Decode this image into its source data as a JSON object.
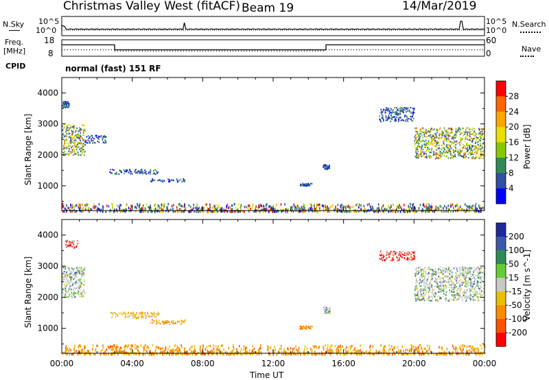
{
  "header": {
    "station": "Christmas Valley West (fitACF)",
    "beam": "Beam 19",
    "date": "14/Mar/2019"
  },
  "left_labels": {
    "nsky": "N.Sky",
    "freq_line1": "Freq.",
    "freq_line2": "[MHz]",
    "cpid": "CPID"
  },
  "right_labels": {
    "nsearch": "N.Search",
    "nave": "Nave"
  },
  "cpid_text": "normal (fast) 151 RF",
  "noise_panel": {
    "left_ticks": [
      "10^5",
      "10^0"
    ],
    "right_ticks": [
      "10^5",
      "10^0"
    ]
  },
  "freq_panel": {
    "left_ticks": [
      "18",
      "8"
    ],
    "right_ticks": [
      "60",
      "0"
    ],
    "freq_segments": [
      [
        0,
        3.0,
        15
      ],
      [
        3.0,
        15.0,
        11
      ],
      [
        15.0,
        24,
        15
      ]
    ],
    "nave_segments": [
      [
        0,
        3.0,
        18
      ],
      [
        3.0,
        15.0,
        12
      ],
      [
        15.0,
        24,
        18
      ]
    ]
  },
  "chart_data": [
    {
      "type": "heatmap",
      "quantity": "Power",
      "ylabel": "Slant Range [km]",
      "yticks": [
        1000,
        2000,
        3000,
        4000
      ],
      "ylim": [
        200,
        4500
      ],
      "xlim_hours": [
        0,
        24
      ],
      "colorbar_label": "Power [dB]",
      "colorbar_ticks": [
        "28",
        "24",
        "20",
        "16",
        "12",
        "8",
        "4"
      ],
      "colorbar_colors": [
        "#ff0000",
        "#ff6600",
        "#ffa500",
        "#e8e000",
        "#88c800",
        "#2e8b57",
        "#3050a0",
        "#0000ff"
      ],
      "echo_regions": [
        {
          "x": [
            0.0,
            1.3
          ],
          "y": [
            2000,
            3000
          ],
          "desc": "mixed 8-24 dB"
        },
        {
          "x": [
            0.0,
            0.4
          ],
          "y": [
            3550,
            3750
          ],
          "desc": "sparse"
        },
        {
          "x": [
            1.3,
            2.5
          ],
          "y": [
            2400,
            2650
          ],
          "desc": "weak"
        },
        {
          "x": [
            2.7,
            5.5
          ],
          "y": [
            1400,
            1550
          ],
          "desc": "weak 4-8 dB"
        },
        {
          "x": [
            5.0,
            7.0
          ],
          "y": [
            1150,
            1250
          ],
          "desc": "weak"
        },
        {
          "x": [
            13.5,
            14.2
          ],
          "y": [
            1020,
            1100
          ],
          "desc": "weak"
        },
        {
          "x": [
            14.8,
            15.2
          ],
          "y": [
            1550,
            1700
          ],
          "desc": "weak"
        },
        {
          "x": [
            18.0,
            20.0
          ],
          "y": [
            3100,
            3550
          ],
          "desc": "weak-moderate"
        },
        {
          "x": [
            20.0,
            24.0
          ],
          "y": [
            1900,
            2900
          ],
          "desc": "mixed 8-24 dB"
        },
        {
          "x": [
            0.0,
            24.0
          ],
          "y": [
            200,
            450
          ],
          "desc": "near-range band"
        }
      ]
    },
    {
      "type": "heatmap",
      "quantity": "Velocity",
      "ylabel": "Slant Range [km]",
      "yticks": [
        1000,
        2000,
        3000,
        4000
      ],
      "ylim": [
        200,
        4500
      ],
      "xlim_hours": [
        0,
        24
      ],
      "colorbar_label": "Velocity [m s^-1]",
      "colorbar_ticks": [
        "200",
        "100",
        "50",
        "15",
        "-15",
        "-50",
        "-100",
        "-200"
      ],
      "colorbar_colors": [
        "#1e2a9b",
        "#3c5aa8",
        "#2e8b57",
        "#66cc33",
        "#c8c8c8",
        "#e8c000",
        "#ff8c00",
        "#ff5000",
        "#ff0000"
      ],
      "echo_regions": [
        {
          "x": [
            0.0,
            1.3
          ],
          "y": [
            2000,
            3000
          ],
          "desc": "near-zero (grey)"
        },
        {
          "x": [
            0.2,
            0.9
          ],
          "y": [
            3600,
            3850
          ],
          "desc": "negative (red)"
        },
        {
          "x": [
            2.7,
            5.5
          ],
          "y": [
            1350,
            1550
          ],
          "desc": "small negative (yellow)"
        },
        {
          "x": [
            5.0,
            7.0
          ],
          "y": [
            1150,
            1300
          ],
          "desc": "small negative (orange)"
        },
        {
          "x": [
            13.5,
            14.2
          ],
          "y": [
            1000,
            1100
          ],
          "desc": "negative (orange)"
        },
        {
          "x": [
            14.8,
            15.2
          ],
          "y": [
            1500,
            1700
          ],
          "desc": "near-zero"
        },
        {
          "x": [
            18.0,
            20.0
          ],
          "y": [
            3200,
            3500
          ],
          "desc": "strongly negative (red)"
        },
        {
          "x": [
            20.0,
            24.0
          ],
          "y": [
            1900,
            3000
          ],
          "desc": "near-zero (grey)"
        },
        {
          "x": [
            0.0,
            24.0
          ],
          "y": [
            200,
            500
          ],
          "desc": "near-range band (yellow-orange)"
        }
      ]
    }
  ],
  "x_ticks": [
    "00:00",
    "04:00",
    "08:00",
    "12:00",
    "16:00",
    "20:00",
    "00:00"
  ],
  "xlabel": "Time UT"
}
